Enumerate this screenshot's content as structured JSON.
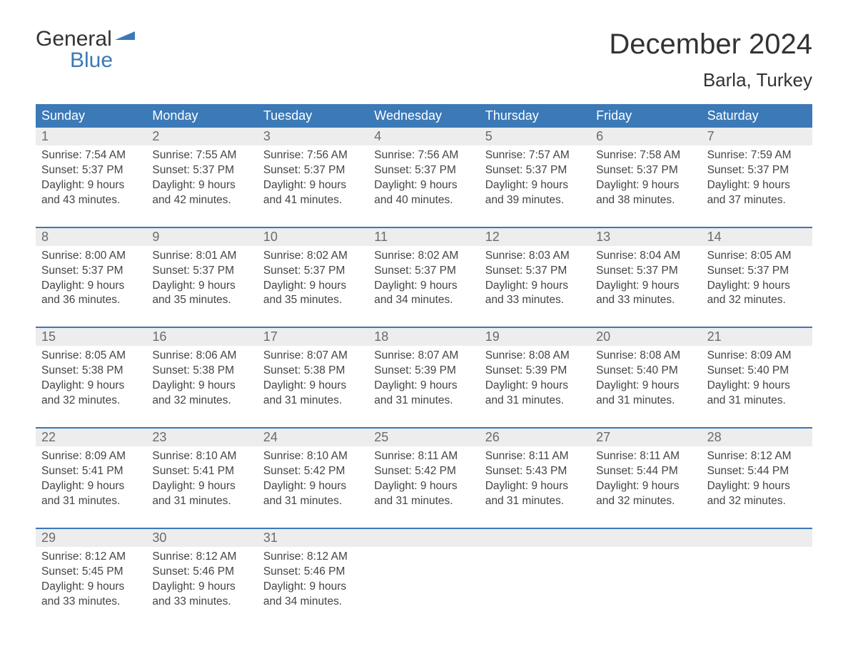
{
  "logo": {
    "line1": "General",
    "line2": "Blue"
  },
  "title": "December 2024",
  "location": "Barla, Turkey",
  "colors": {
    "header_bg": "#3b79b7",
    "header_text": "#ffffff",
    "daynum_bg": "#ededed",
    "daynum_text": "#6b6b6b",
    "body_text": "#444444",
    "accent": "#3b79b7"
  },
  "daysOfWeek": [
    "Sunday",
    "Monday",
    "Tuesday",
    "Wednesday",
    "Thursday",
    "Friday",
    "Saturday"
  ],
  "labels": {
    "sunrise": "Sunrise:",
    "sunset": "Sunset:",
    "daylight": "Daylight:"
  },
  "weeks": [
    [
      {
        "n": 1,
        "sunrise": "7:54 AM",
        "sunset": "5:37 PM",
        "daylight": "9 hours and 43 minutes."
      },
      {
        "n": 2,
        "sunrise": "7:55 AM",
        "sunset": "5:37 PM",
        "daylight": "9 hours and 42 minutes."
      },
      {
        "n": 3,
        "sunrise": "7:56 AM",
        "sunset": "5:37 PM",
        "daylight": "9 hours and 41 minutes."
      },
      {
        "n": 4,
        "sunrise": "7:56 AM",
        "sunset": "5:37 PM",
        "daylight": "9 hours and 40 minutes."
      },
      {
        "n": 5,
        "sunrise": "7:57 AM",
        "sunset": "5:37 PM",
        "daylight": "9 hours and 39 minutes."
      },
      {
        "n": 6,
        "sunrise": "7:58 AM",
        "sunset": "5:37 PM",
        "daylight": "9 hours and 38 minutes."
      },
      {
        "n": 7,
        "sunrise": "7:59 AM",
        "sunset": "5:37 PM",
        "daylight": "9 hours and 37 minutes."
      }
    ],
    [
      {
        "n": 8,
        "sunrise": "8:00 AM",
        "sunset": "5:37 PM",
        "daylight": "9 hours and 36 minutes."
      },
      {
        "n": 9,
        "sunrise": "8:01 AM",
        "sunset": "5:37 PM",
        "daylight": "9 hours and 35 minutes."
      },
      {
        "n": 10,
        "sunrise": "8:02 AM",
        "sunset": "5:37 PM",
        "daylight": "9 hours and 35 minutes."
      },
      {
        "n": 11,
        "sunrise": "8:02 AM",
        "sunset": "5:37 PM",
        "daylight": "9 hours and 34 minutes."
      },
      {
        "n": 12,
        "sunrise": "8:03 AM",
        "sunset": "5:37 PM",
        "daylight": "9 hours and 33 minutes."
      },
      {
        "n": 13,
        "sunrise": "8:04 AM",
        "sunset": "5:37 PM",
        "daylight": "9 hours and 33 minutes."
      },
      {
        "n": 14,
        "sunrise": "8:05 AM",
        "sunset": "5:37 PM",
        "daylight": "9 hours and 32 minutes."
      }
    ],
    [
      {
        "n": 15,
        "sunrise": "8:05 AM",
        "sunset": "5:38 PM",
        "daylight": "9 hours and 32 minutes."
      },
      {
        "n": 16,
        "sunrise": "8:06 AM",
        "sunset": "5:38 PM",
        "daylight": "9 hours and 32 minutes."
      },
      {
        "n": 17,
        "sunrise": "8:07 AM",
        "sunset": "5:38 PM",
        "daylight": "9 hours and 31 minutes."
      },
      {
        "n": 18,
        "sunrise": "8:07 AM",
        "sunset": "5:39 PM",
        "daylight": "9 hours and 31 minutes."
      },
      {
        "n": 19,
        "sunrise": "8:08 AM",
        "sunset": "5:39 PM",
        "daylight": "9 hours and 31 minutes."
      },
      {
        "n": 20,
        "sunrise": "8:08 AM",
        "sunset": "5:40 PM",
        "daylight": "9 hours and 31 minutes."
      },
      {
        "n": 21,
        "sunrise": "8:09 AM",
        "sunset": "5:40 PM",
        "daylight": "9 hours and 31 minutes."
      }
    ],
    [
      {
        "n": 22,
        "sunrise": "8:09 AM",
        "sunset": "5:41 PM",
        "daylight": "9 hours and 31 minutes."
      },
      {
        "n": 23,
        "sunrise": "8:10 AM",
        "sunset": "5:41 PM",
        "daylight": "9 hours and 31 minutes."
      },
      {
        "n": 24,
        "sunrise": "8:10 AM",
        "sunset": "5:42 PM",
        "daylight": "9 hours and 31 minutes."
      },
      {
        "n": 25,
        "sunrise": "8:11 AM",
        "sunset": "5:42 PM",
        "daylight": "9 hours and 31 minutes."
      },
      {
        "n": 26,
        "sunrise": "8:11 AM",
        "sunset": "5:43 PM",
        "daylight": "9 hours and 31 minutes."
      },
      {
        "n": 27,
        "sunrise": "8:11 AM",
        "sunset": "5:44 PM",
        "daylight": "9 hours and 32 minutes."
      },
      {
        "n": 28,
        "sunrise": "8:12 AM",
        "sunset": "5:44 PM",
        "daylight": "9 hours and 32 minutes."
      }
    ],
    [
      {
        "n": 29,
        "sunrise": "8:12 AM",
        "sunset": "5:45 PM",
        "daylight": "9 hours and 33 minutes."
      },
      {
        "n": 30,
        "sunrise": "8:12 AM",
        "sunset": "5:46 PM",
        "daylight": "9 hours and 33 minutes."
      },
      {
        "n": 31,
        "sunrise": "8:12 AM",
        "sunset": "5:46 PM",
        "daylight": "9 hours and 34 minutes."
      },
      null,
      null,
      null,
      null
    ]
  ]
}
